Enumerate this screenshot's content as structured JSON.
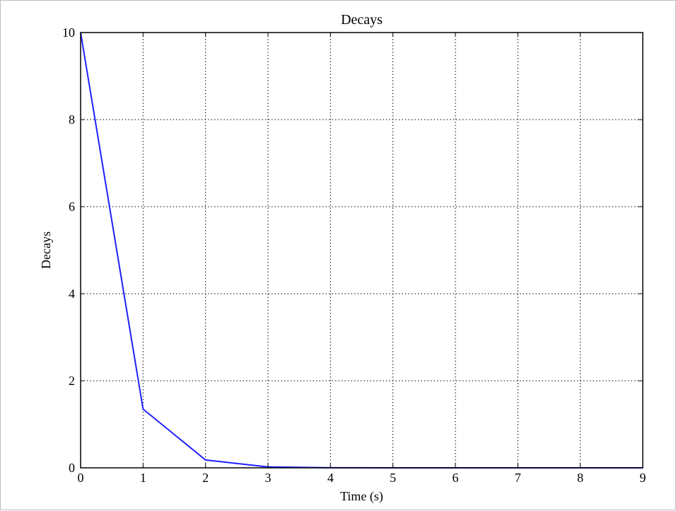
{
  "chart_data": {
    "type": "line",
    "title": "Decays",
    "xlabel": "Time (s)",
    "ylabel": "Decays",
    "xlim": [
      0,
      9
    ],
    "ylim": [
      0,
      10
    ],
    "xticks": [
      0,
      1,
      2,
      3,
      4,
      5,
      6,
      7,
      8,
      9
    ],
    "yticks": [
      0,
      2,
      4,
      6,
      8,
      10
    ],
    "grid": true,
    "series": [
      {
        "color": "#2020ff",
        "x": [
          0,
          1,
          2,
          3,
          4,
          5,
          6,
          7,
          8,
          9
        ],
        "y": [
          10,
          1.35,
          0.18,
          0.02,
          0.003,
          0.0005,
          0.0001,
          1e-05,
          1e-06,
          1e-07
        ]
      }
    ]
  }
}
